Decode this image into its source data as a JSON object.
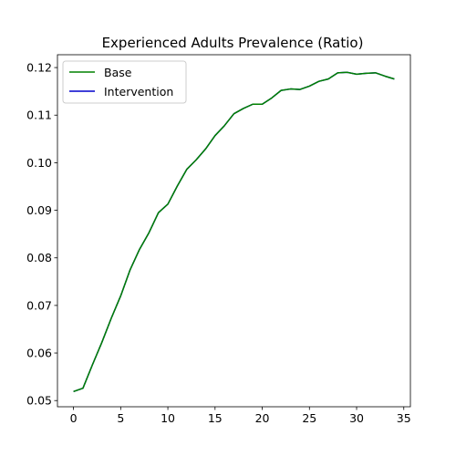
{
  "chart_data": {
    "type": "line",
    "title": "Experienced Adults Prevalence (Ratio)",
    "xlabel": "",
    "ylabel": "",
    "xlim": [
      -1.7,
      35.7
    ],
    "ylim": [
      0.0487,
      0.1227
    ],
    "x_ticks": [
      0,
      5,
      10,
      15,
      20,
      25,
      30,
      35
    ],
    "y_ticks": [
      0.05,
      0.06,
      0.07,
      0.08,
      0.09,
      0.1,
      0.11,
      0.12
    ],
    "y_tick_labels": [
      "0.05",
      "0.06",
      "0.07",
      "0.08",
      "0.09",
      "0.10",
      "0.11",
      "0.12"
    ],
    "legend_position": "top-left",
    "grid": false,
    "x": [
      0,
      1,
      2,
      3,
      4,
      5,
      6,
      7,
      8,
      9,
      10,
      11,
      12,
      13,
      14,
      15,
      16,
      17,
      18,
      19,
      20,
      21,
      22,
      23,
      24,
      25,
      26,
      27,
      28,
      29,
      30,
      31,
      32,
      33,
      34
    ],
    "series": [
      {
        "name": "Base",
        "color": "#008000",
        "values": [
          0.0519,
          0.0526,
          0.0575,
          0.0622,
          0.0673,
          0.072,
          0.0775,
          0.0818,
          0.0853,
          0.0895,
          0.0913,
          0.0951,
          0.0986,
          0.1006,
          0.1029,
          0.1057,
          0.1078,
          0.1103,
          0.1114,
          0.1123,
          0.1123,
          0.1136,
          0.1152,
          0.1155,
          0.1154,
          0.1161,
          0.1171,
          0.1176,
          0.1189,
          0.119,
          0.1186,
          0.1188,
          0.1189,
          0.1182,
          0.1176
        ]
      },
      {
        "name": "Intervention",
        "color": "#0000cc",
        "values": [
          0.0519,
          0.0526,
          0.0575,
          0.0622,
          0.0673,
          0.072,
          0.0775,
          0.0818,
          0.0853,
          0.0895,
          0.0913,
          0.0951,
          0.0986,
          0.1006,
          0.1029,
          0.1057,
          0.1078,
          0.1103,
          0.1114,
          0.1123,
          0.1123,
          0.1136,
          0.1152,
          0.1155,
          0.1154,
          0.1161,
          0.1171,
          0.1176,
          0.1189,
          0.119,
          0.1186,
          0.1188,
          0.1189,
          0.1182,
          0.1176
        ]
      }
    ]
  }
}
